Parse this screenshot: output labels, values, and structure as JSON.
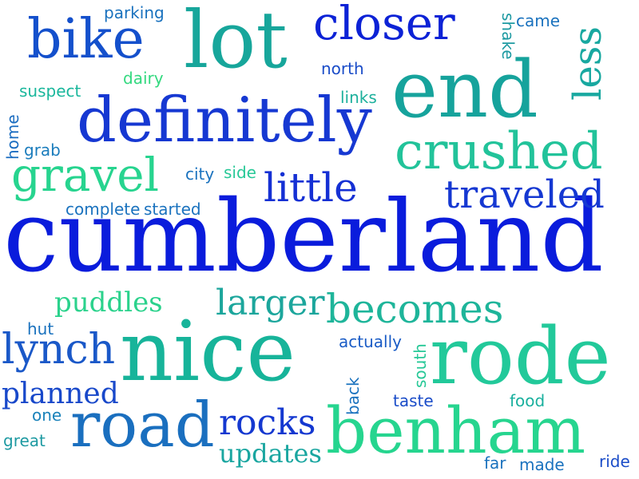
{
  "words": {
    "cumberland": "cumberland",
    "nice": "nice",
    "rode": "rode",
    "end": "end",
    "lot": "lot",
    "benham": "benham",
    "definitely": "definitely",
    "road": "road",
    "bike": "bike",
    "crushed": "crushed",
    "closer": "closer",
    "gravel": "gravel",
    "lynch": "lynch",
    "becomes": "becomes",
    "traveled": "traveled",
    "little": "little",
    "larger": "larger",
    "less": "less",
    "rocks": "rocks",
    "planned": "planned",
    "puddles": "puddles",
    "updates": "updates",
    "parking": "parking",
    "came": "came",
    "shake": "shake",
    "north": "north",
    "dairy": "dairy",
    "suspect": "suspect",
    "links": "links",
    "home": "home",
    "grab": "grab",
    "city": "city",
    "side": "side",
    "complete": "complete",
    "started": "started",
    "hut": "hut",
    "actually": "actually",
    "south": "south",
    "back": "back",
    "taste": "taste",
    "food": "food",
    "one": "one",
    "great": "great",
    "far": "far",
    "made": "made",
    "ride": "ride"
  },
  "colors": {
    "blue": "#0a1fd8",
    "royal": "#1545c8",
    "steel": "#1a6fbf",
    "teal": "#14a39a",
    "sea": "#18b99a",
    "mint": "#27d48f",
    "green": "#30da86"
  }
}
